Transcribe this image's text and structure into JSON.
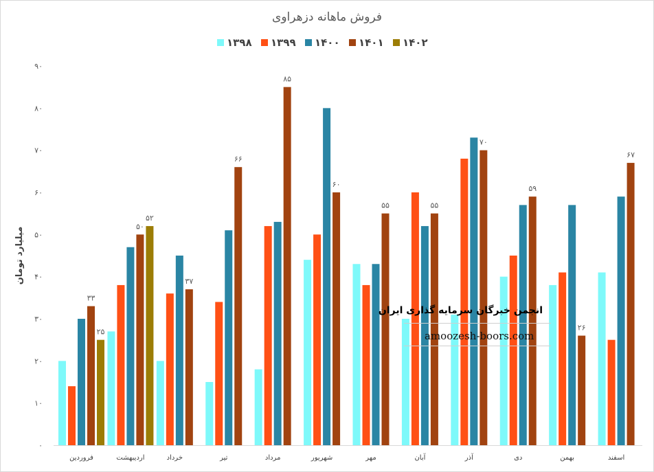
{
  "chart_data": {
    "type": "bar",
    "title": "فروش ماهانه دزهراوی",
    "ylabel": "میلیارد تومان",
    "xlabel": "",
    "ylim": [
      0,
      90
    ],
    "yticks": [
      0,
      10,
      20,
      30,
      40,
      50,
      60,
      70,
      80,
      90
    ],
    "ytick_labels": [
      "۰",
      "۱۰",
      "۲۰",
      "۳۰",
      "۴۰",
      "۵۰",
      "۶۰",
      "۷۰",
      "۸۰",
      "۹۰"
    ],
    "grid": false,
    "legend_position": "top-center",
    "categories": [
      "فروردین",
      "اردیبهشت",
      "خرداد",
      "تیر",
      "مرداد",
      "شهریور",
      "مهر",
      "آبان",
      "آذر",
      "دی",
      "بهمن",
      "اسفند"
    ],
    "series": [
      {
        "name": "۱۳۹۸",
        "color": "#7ef9fa",
        "values": [
          20,
          27,
          20,
          15,
          18,
          44,
          43,
          30,
          31,
          40,
          38,
          41
        ],
        "labels": [
          "",
          "",
          "",
          "",
          "",
          "",
          "",
          "",
          "",
          "",
          "",
          ""
        ]
      },
      {
        "name": "۱۳۹۹",
        "color": "#ff5015",
        "values": [
          14,
          38,
          36,
          34,
          52,
          50,
          38,
          60,
          68,
          45,
          41,
          25
        ],
        "labels": [
          "",
          "",
          "",
          "",
          "",
          "",
          "",
          "",
          "",
          "",
          "",
          ""
        ]
      },
      {
        "name": "۱۴۰۰",
        "color": "#2a85a4",
        "values": [
          30,
          47,
          45,
          51,
          53,
          80,
          43,
          52,
          73,
          57,
          57,
          59
        ],
        "labels": [
          "",
          "",
          "",
          "",
          "",
          "",
          "",
          "",
          "",
          "",
          "",
          ""
        ]
      },
      {
        "name": "۱۴۰۱",
        "color": "#a14310",
        "values": [
          33,
          50,
          37,
          66,
          85,
          60,
          55,
          55,
          70,
          59,
          26,
          67
        ],
        "labels": [
          "۳۳",
          "۵۰",
          "۳۷",
          "۶۶",
          "۸۵",
          "۶۰",
          "۵۵",
          "۵۵",
          "۷۰",
          "۵۹",
          "۲۶",
          "۶۷"
        ]
      },
      {
        "name": "۱۴۰۲",
        "color": "#9c7d06",
        "values": [
          25,
          52,
          null,
          null,
          null,
          null,
          null,
          null,
          null,
          null,
          null,
          null
        ],
        "labels": [
          "۲۵",
          "۵۲",
          "",
          "",
          "",
          "",
          "",
          "",
          "",
          "",
          "",
          ""
        ]
      }
    ]
  },
  "watermark": {
    "title": "انجمن خبرگان سرمایه گذاری ایران",
    "url": "amoozesh-boors.com"
  }
}
